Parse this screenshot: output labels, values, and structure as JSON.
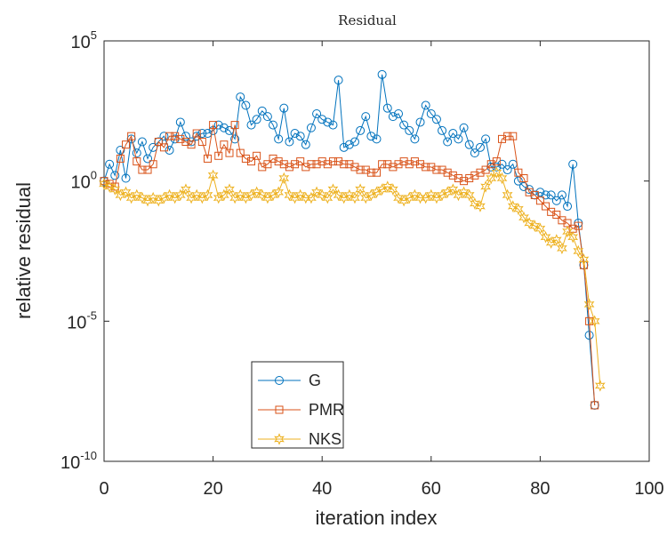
{
  "chart_data": {
    "type": "line",
    "title": "Residual",
    "xlabel": "iteration index",
    "ylabel": "relative residual",
    "xlim": [
      0,
      100
    ],
    "ylim_exponents": [
      -10,
      5
    ],
    "yscale": "log",
    "grid": false,
    "legend_position": "lower-left",
    "x_ticks": [
      "0",
      "20",
      "40",
      "60",
      "80",
      "100"
    ],
    "y_ticks": [
      {
        "base": "10",
        "exp": "-10",
        "value_exp": -10
      },
      {
        "base": "10",
        "exp": "-5",
        "value_exp": -5
      },
      {
        "base": "10",
        "exp": "0",
        "value_exp": 0
      },
      {
        "base": "10",
        "exp": "5",
        "value_exp": 5
      }
    ],
    "series": [
      {
        "name": "G",
        "color": "#0072BD",
        "marker": "circle",
        "x": [
          0,
          1,
          2,
          3,
          4,
          5,
          6,
          7,
          8,
          9,
          10,
          11,
          12,
          13,
          14,
          15,
          16,
          17,
          18,
          19,
          20,
          21,
          22,
          23,
          24,
          25,
          26,
          27,
          28,
          29,
          30,
          31,
          32,
          33,
          34,
          35,
          36,
          37,
          38,
          39,
          40,
          41,
          42,
          43,
          44,
          45,
          46,
          47,
          48,
          49,
          50,
          51,
          52,
          53,
          54,
          55,
          56,
          57,
          58,
          59,
          60,
          61,
          62,
          63,
          64,
          65,
          66,
          67,
          68,
          69,
          70,
          71,
          72,
          73,
          74,
          75,
          76,
          77,
          78,
          79,
          80,
          81,
          82,
          83,
          84,
          85,
          86,
          87,
          88,
          89,
          90
        ],
        "log10_values": [
          0.0,
          0.6,
          0.2,
          1.1,
          0.1,
          1.5,
          1.0,
          1.4,
          0.8,
          1.2,
          1.4,
          1.6,
          1.1,
          1.5,
          2.1,
          1.6,
          1.4,
          1.6,
          1.7,
          1.7,
          1.8,
          2.0,
          1.9,
          1.8,
          1.5,
          3.0,
          2.7,
          2.0,
          2.2,
          2.5,
          2.3,
          2.0,
          1.5,
          2.6,
          1.4,
          1.7,
          1.6,
          1.3,
          1.9,
          2.4,
          2.2,
          2.1,
          2.0,
          3.6,
          1.2,
          1.3,
          1.4,
          1.8,
          2.3,
          1.6,
          1.5,
          3.8,
          2.6,
          2.3,
          2.4,
          2.0,
          1.8,
          1.5,
          2.1,
          2.7,
          2.4,
          2.2,
          1.8,
          1.4,
          1.7,
          1.5,
          1.9,
          1.3,
          1.0,
          1.2,
          1.5,
          0.5,
          0.5,
          0.6,
          0.4,
          0.6,
          0.0,
          -0.2,
          -0.3,
          -0.5,
          -0.4,
          -0.5,
          -0.5,
          -0.7,
          -0.5,
          -0.9,
          0.6,
          -1.5,
          -3.0,
          -5.5,
          -8.0
        ]
      },
      {
        "name": "PMR",
        "color": "#D95319",
        "marker": "square",
        "x": [
          0,
          1,
          2,
          3,
          4,
          5,
          6,
          7,
          8,
          9,
          10,
          11,
          12,
          13,
          14,
          15,
          16,
          17,
          18,
          19,
          20,
          21,
          22,
          23,
          24,
          25,
          26,
          27,
          28,
          29,
          30,
          31,
          32,
          33,
          34,
          35,
          36,
          37,
          38,
          39,
          40,
          41,
          42,
          43,
          44,
          45,
          46,
          47,
          48,
          49,
          50,
          51,
          52,
          53,
          54,
          55,
          56,
          57,
          58,
          59,
          60,
          61,
          62,
          63,
          64,
          65,
          66,
          67,
          68,
          69,
          70,
          71,
          72,
          73,
          74,
          75,
          76,
          77,
          78,
          79,
          80,
          81,
          82,
          83,
          84,
          85,
          86,
          87,
          88,
          89,
          90
        ],
        "log10_values": [
          0.0,
          -0.1,
          -0.2,
          0.8,
          1.3,
          1.6,
          0.7,
          0.4,
          0.4,
          0.6,
          1.4,
          1.2,
          1.6,
          1.6,
          1.5,
          1.4,
          1.3,
          1.7,
          1.4,
          0.8,
          2.0,
          0.9,
          1.3,
          1.0,
          2.0,
          1.0,
          0.8,
          0.7,
          0.9,
          0.5,
          0.6,
          0.8,
          0.7,
          0.6,
          0.5,
          0.6,
          0.7,
          0.5,
          0.6,
          0.6,
          0.7,
          0.6,
          0.7,
          0.7,
          0.6,
          0.6,
          0.5,
          0.4,
          0.4,
          0.3,
          0.3,
          0.6,
          0.6,
          0.5,
          0.6,
          0.7,
          0.6,
          0.7,
          0.6,
          0.5,
          0.5,
          0.4,
          0.4,
          0.3,
          0.2,
          0.1,
          0.0,
          0.1,
          0.2,
          0.3,
          0.4,
          0.6,
          0.7,
          1.5,
          1.6,
          1.6,
          0.3,
          0.1,
          -0.4,
          -0.5,
          -0.7,
          -0.9,
          -1.1,
          -1.2,
          -1.4,
          -1.5,
          -1.7,
          -1.6,
          -3.0,
          -5.0,
          -8.0
        ]
      },
      {
        "name": "NKS",
        "color": "#EDB120",
        "marker": "star",
        "x": [
          0,
          1,
          2,
          3,
          4,
          5,
          6,
          7,
          8,
          9,
          10,
          11,
          12,
          13,
          14,
          15,
          16,
          17,
          18,
          19,
          20,
          21,
          22,
          23,
          24,
          25,
          26,
          27,
          28,
          29,
          30,
          31,
          32,
          33,
          34,
          35,
          36,
          37,
          38,
          39,
          40,
          41,
          42,
          43,
          44,
          45,
          46,
          47,
          48,
          49,
          50,
          51,
          52,
          53,
          54,
          55,
          56,
          57,
          58,
          59,
          60,
          61,
          62,
          63,
          64,
          65,
          66,
          67,
          68,
          69,
          70,
          71,
          72,
          73,
          74,
          75,
          76,
          77,
          78,
          79,
          80,
          81,
          82,
          83,
          84,
          85,
          86,
          87,
          88,
          89,
          90,
          91
        ],
        "log10_values": [
          -0.1,
          -0.2,
          -0.3,
          -0.5,
          -0.4,
          -0.6,
          -0.5,
          -0.6,
          -0.7,
          -0.6,
          -0.7,
          -0.6,
          -0.5,
          -0.6,
          -0.5,
          -0.3,
          -0.6,
          -0.5,
          -0.6,
          -0.5,
          0.2,
          -0.6,
          -0.5,
          -0.3,
          -0.6,
          -0.5,
          -0.6,
          -0.5,
          -0.4,
          -0.5,
          -0.6,
          -0.5,
          -0.4,
          0.1,
          -0.5,
          -0.6,
          -0.5,
          -0.6,
          -0.6,
          -0.4,
          -0.5,
          -0.6,
          -0.3,
          -0.5,
          -0.6,
          -0.5,
          -0.6,
          -0.3,
          -0.6,
          -0.5,
          -0.4,
          -0.3,
          -0.2,
          -0.3,
          -0.6,
          -0.7,
          -0.6,
          -0.5,
          -0.6,
          -0.6,
          -0.5,
          -0.6,
          -0.5,
          -0.4,
          -0.3,
          -0.5,
          -0.4,
          -0.5,
          -0.8,
          -0.9,
          -0.2,
          0.1,
          0.3,
          0.1,
          -0.5,
          -0.9,
          -1.0,
          -1.3,
          -1.5,
          -1.6,
          -1.7,
          -2.0,
          -2.2,
          -2.1,
          -2.4,
          -1.8,
          -2.0,
          -2.5,
          -2.8,
          -4.4,
          -5.0,
          -7.3
        ]
      }
    ]
  }
}
